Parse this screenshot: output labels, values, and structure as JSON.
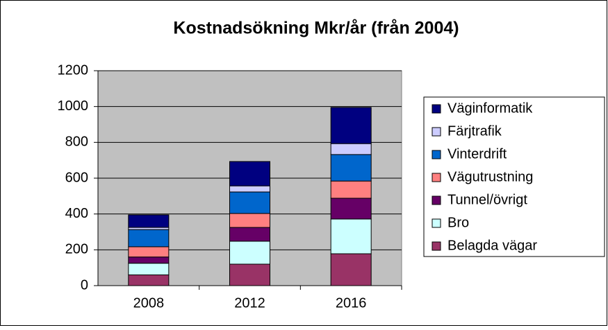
{
  "chart_data": {
    "type": "stacked_bar",
    "title": "Kostnadsökning Mkr/år (från 2004)",
    "categories": [
      "2008",
      "2012",
      "2016"
    ],
    "series": [
      {
        "name": "Belagda vägar",
        "color": "#993366",
        "values": [
          60,
          120,
          178
        ]
      },
      {
        "name": "Bro",
        "color": "#ccffff",
        "values": [
          65,
          128,
          194
        ]
      },
      {
        "name": "Tunnel/övrigt",
        "color": "#660066",
        "values": [
          35,
          77,
          116
        ]
      },
      {
        "name": "Vägutrustning",
        "color": "#ff8080",
        "values": [
          57,
          78,
          96
        ]
      },
      {
        "name": "Vinterdrift",
        "color": "#0066cc",
        "values": [
          96,
          120,
          148
        ]
      },
      {
        "name": "Färjtrafik",
        "color": "#ccccff",
        "values": [
          12,
          34,
          61
        ]
      },
      {
        "name": "Väginformatik",
        "color": "#000080",
        "values": [
          70,
          136,
          202
        ]
      }
    ],
    "ylim": [
      0,
      1200
    ],
    "yticks": [
      0,
      200,
      400,
      600,
      800,
      1000,
      1200
    ],
    "grid": true,
    "legend": "right"
  }
}
